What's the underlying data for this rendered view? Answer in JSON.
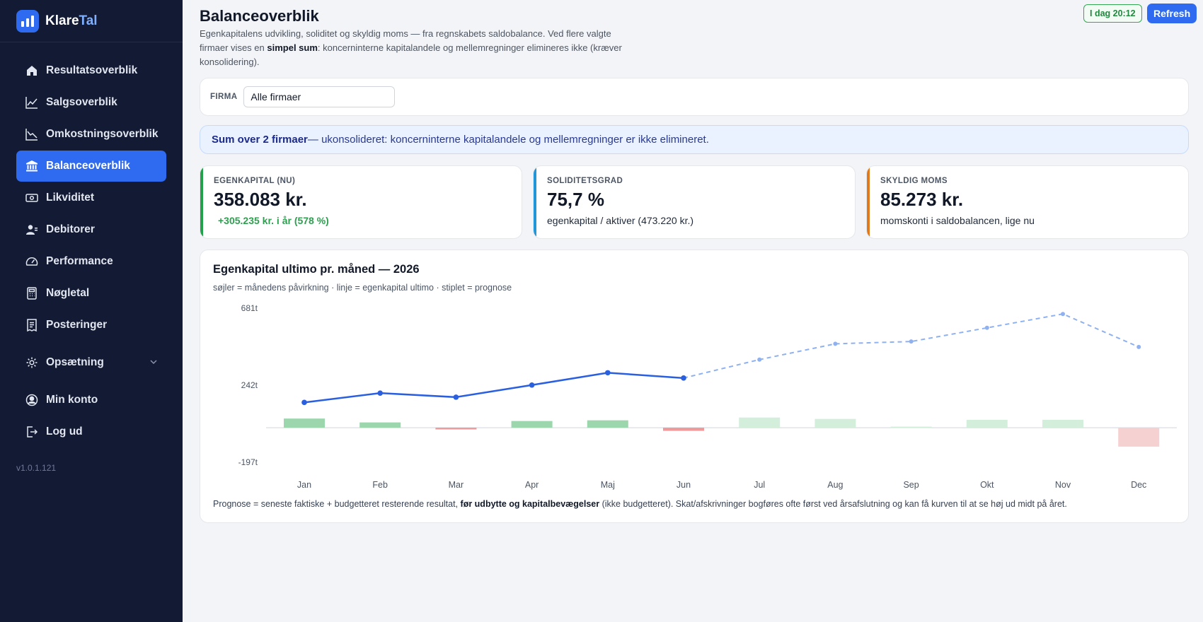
{
  "brand": {
    "name_part1": "Klare",
    "name_part2": "Tal"
  },
  "sidebar": {
    "items": [
      {
        "label": "Resultatsoverblik",
        "icon": "home-icon"
      },
      {
        "label": "Salgsoverblik",
        "icon": "trending-up-icon"
      },
      {
        "label": "Omkostningsoverblik",
        "icon": "trending-down-icon"
      },
      {
        "label": "Balanceoverblik",
        "icon": "bank-icon",
        "active": true
      },
      {
        "label": "Likviditet",
        "icon": "cash-icon"
      },
      {
        "label": "Debitorer",
        "icon": "users-icon"
      },
      {
        "label": "Performance",
        "icon": "gauge-icon"
      },
      {
        "label": "Nøgletal",
        "icon": "calculator-icon"
      },
      {
        "label": "Posteringer",
        "icon": "receipt-icon"
      },
      {
        "label": "Opsætning",
        "icon": "gear-icon"
      },
      {
        "label": "Min konto",
        "icon": "user-circle-icon"
      },
      {
        "label": "Log ud",
        "icon": "logout-icon"
      }
    ],
    "version": "v1.0.1.121"
  },
  "header": {
    "title": "Balanceoverblik",
    "desc_part1": "Egenkapitalens udvikling, soliditet og skyldig moms — fra regnskabets saldobalance. Ved flere valgte firmaer vises en ",
    "desc_bold": "simpel sum",
    "desc_part2": ": koncerninterne kapitalandele og mellemregninger elimineres ikke (kræver konsolidering).",
    "status": "I dag 20:12",
    "refresh_label": "Refresh"
  },
  "filter": {
    "label": "FIRMA",
    "value": "Alle firmaer"
  },
  "notice": {
    "bold": "Sum over 2 firmaer",
    "text": " — ukonsolideret: koncerninterne kapitalandele og mellemregninger er ikke elimineret."
  },
  "kpis": [
    {
      "label": "EGENKAPITAL (NU)",
      "value": "358.083 kr.",
      "sub": "+305.235 kr. i år (578 %)"
    },
    {
      "label": "SOLIDITETSGRAD",
      "value": "75,7 %",
      "sub": "egenkapital / aktiver (473.220 kr.)"
    },
    {
      "label": "SKYLDIG MOMS",
      "value": "85.273 kr.",
      "sub": "momskonti i saldobalancen, lige nu"
    }
  ],
  "chart": {
    "title": "Egenkapital ultimo pr. måned — 2026",
    "subtitle": "søjler = månedens påvirkning · linje = egenkapital ultimo · stiplet = prognose",
    "footnote_part1": "Prognose = seneste faktiske + budgetteret resterende resultat, ",
    "footnote_bold": "før udbytte og kapitalbevægelser",
    "footnote_part2": " (ikke budgetteret). Skat/afskrivninger bogføres ofte først ved årsafslutning og kan få kurven til at se høj ud midt på året."
  },
  "chart_data": {
    "type": "bar+line",
    "title": "Egenkapital ultimo pr. måned — 2026",
    "categories": [
      "Jan",
      "Feb",
      "Mar",
      "Apr",
      "Maj",
      "Jun",
      "Jul",
      "Aug",
      "Sep",
      "Okt",
      "Nov",
      "Dec"
    ],
    "y_tick_labels": [
      "681t",
      "242t",
      "-197t"
    ],
    "y_ticks": [
      681,
      242,
      -197
    ],
    "ylim": [
      -197,
      681
    ],
    "actual_count": 6,
    "series": [
      {
        "name": "månedens påvirkning",
        "kind": "bar",
        "values": [
          52,
          30,
          -10,
          38,
          42,
          -18,
          58,
          50,
          6,
          45,
          45,
          -108
        ]
      },
      {
        "name": "egenkapital ultimo",
        "kind": "line",
        "values": [
          144,
          197,
          174,
          243,
          313,
          283,
          388,
          478,
          491,
          569,
          648,
          460
        ]
      }
    ],
    "colors": {
      "bar_pos_actual": "#9bd6ac",
      "bar_pos_forecast": "#d3eedb",
      "bar_neg_actual": "#ee9a9a",
      "bar_neg_forecast": "#f6d1d1",
      "line_actual": "#2a5fe0",
      "line_forecast": "#8fb1f0"
    }
  }
}
